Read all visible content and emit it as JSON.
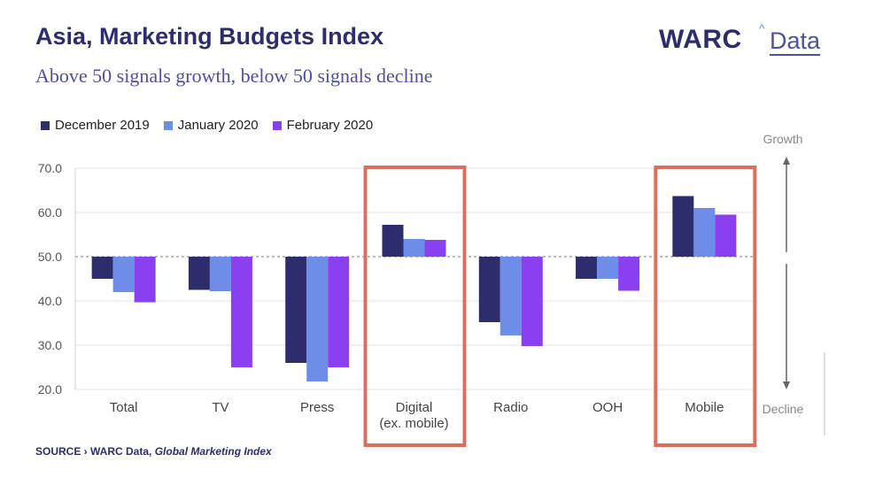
{
  "header": {
    "title": "Asia, Marketing Budgets Index",
    "subtitle": "Above 50 signals growth, below 50 signals decline"
  },
  "logo": {
    "primary": "WARC",
    "caret": "^",
    "secondary": "Data"
  },
  "source": {
    "label": "SOURCE ›",
    "publisher": "WARC Data,",
    "title": "Global Marketing Index"
  },
  "annotations": {
    "top": "Growth",
    "bottom": "Decline"
  },
  "colors": {
    "december_2019": "#2d2d6e",
    "january_2020": "#6e8de8",
    "february_2020": "#8a3ff0",
    "highlight_box": "#d9705f"
  },
  "chart_data": {
    "type": "bar",
    "baseline": 50,
    "categories": [
      "Total",
      "TV",
      "Press",
      "Digital\n(ex. mobile)",
      "Radio",
      "OOH",
      "Mobile"
    ],
    "category_lines": [
      [
        "Total"
      ],
      [
        "TV"
      ],
      [
        "Press"
      ],
      [
        "Digital",
        "(ex. mobile)"
      ],
      [
        "Radio"
      ],
      [
        "OOH"
      ],
      [
        "Mobile"
      ]
    ],
    "series": [
      {
        "name": "December 2019",
        "color": "#2d2d6e",
        "values": [
          45.0,
          42.5,
          26.0,
          57.2,
          35.2,
          45.0,
          63.7
        ]
      },
      {
        "name": "January 2020",
        "color": "#6e8de8",
        "values": [
          42.0,
          42.2,
          21.8,
          54.0,
          32.2,
          45.0,
          61.0
        ]
      },
      {
        "name": "February 2020",
        "color": "#8a3ff0",
        "values": [
          39.7,
          25.0,
          25.0,
          53.8,
          29.8,
          42.3,
          59.5
        ]
      }
    ],
    "yticks": [
      "70.0",
      "60.0",
      "50.0",
      "40.0",
      "30.0",
      "20.0"
    ],
    "ylim": [
      20,
      70
    ],
    "grid": true,
    "highlighted_categories": [
      3,
      6
    ],
    "legend_position": "top-left"
  }
}
